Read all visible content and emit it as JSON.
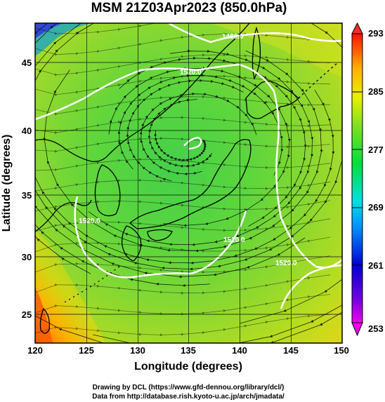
{
  "title": "MSM 21Z03Apr2023 (850.0hPa)",
  "xlabel": "Longitude (degrees)",
  "ylabel": "Latitude  (degrees)",
  "x_ticks": [
    "120",
    "125",
    "130",
    "135",
    "140",
    "145",
    "150"
  ],
  "y_ticks": [
    "25",
    "30",
    "35",
    "40",
    "45"
  ],
  "colorbar": {
    "ticks": [
      "293",
      "285",
      "277",
      "269",
      "261",
      "253"
    ],
    "range": [
      253,
      293
    ]
  },
  "contour_labels": [
    "1480.0",
    "1520.0",
    "1520.0",
    "1520.0",
    "1520.0"
  ],
  "credits": {
    "line1": "Drawing by DCL (https://www.gfd-dennou.org/library/dcl/)",
    "line2": "Data from http://database.rish.kyoto-u.ac.jp/arch/jmadata/"
  },
  "chart_data": {
    "type": "heatmap",
    "title": "MSM 21Z03Apr2023 (850.0hPa)",
    "xlabel": "Longitude (degrees)",
    "ylabel": "Latitude  (degrees)",
    "xlim": [
      120,
      150
    ],
    "ylim": [
      22.4,
      47.6
    ],
    "x_ticks": [
      120,
      125,
      130,
      135,
      140,
      145,
      150
    ],
    "y_ticks": [
      25,
      30,
      35,
      40,
      45
    ],
    "colorbar_range": [
      253,
      293
    ],
    "colorbar_ticks": [
      293,
      285,
      277,
      269,
      261,
      253
    ],
    "colormap": [
      "#ee00ee",
      "#0000d0",
      "#00e0ff",
      "#00dd40",
      "#ffff00",
      "#ff0000"
    ],
    "low_center": {
      "lon": 134.8,
      "lat": 39.6
    },
    "contours": [
      {
        "level": 1480.0,
        "label_lon": 141.1,
        "label_lat": 46.4
      },
      {
        "level": 1520.0,
        "label_lon": 136.0,
        "label_lat": 44.1
      },
      {
        "level": 1520.0,
        "label_lon": 123.5,
        "label_lat": 33.5
      },
      {
        "level": 1520.0,
        "label_lon": 138.5,
        "label_lat": 31.3
      },
      {
        "level": 1520.0,
        "label_lon": 144.5,
        "label_lat": 29.0
      }
    ],
    "field": "temperature (K) with streamlines and geopotential height contours",
    "grid": true
  }
}
